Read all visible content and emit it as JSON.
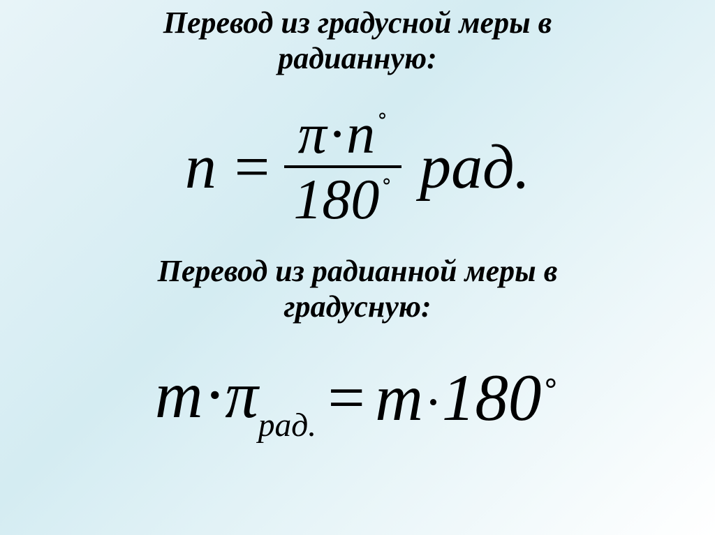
{
  "background": {
    "gradient_from": "#e8f4f8",
    "gradient_mid": "#d4ecf2",
    "gradient_to": "#ffffff"
  },
  "text_color": "#000000",
  "title1": {
    "line1": "Перевод из градусной меры в",
    "line2": "радианную:",
    "fontsize_pt": 33,
    "weight": "bold",
    "style": "italic"
  },
  "formula1": {
    "lhs_var": "n",
    "eq": "=",
    "numerator": {
      "pi": "π",
      "dot": "·",
      "var": "n",
      "degree_mark": "∘"
    },
    "denominator": {
      "value": "180",
      "degree_mark": "∘"
    },
    "unit": "рад.",
    "fontsize_pt": 68,
    "fraction_fontsize_pt": 62
  },
  "title2": {
    "line1": "Перевод из радианной меры в",
    "line2": "градусную:",
    "fontsize_pt": 33,
    "weight": "bold",
    "style": "italic"
  },
  "formula2": {
    "lhs": {
      "var": "m",
      "dot": "·",
      "pi": "π",
      "subscript": "рад."
    },
    "eq": "=",
    "rhs": {
      "var": "m",
      "dot": "·",
      "value": "180",
      "degree_mark": "∘"
    },
    "fontsize_pt": 72
  }
}
